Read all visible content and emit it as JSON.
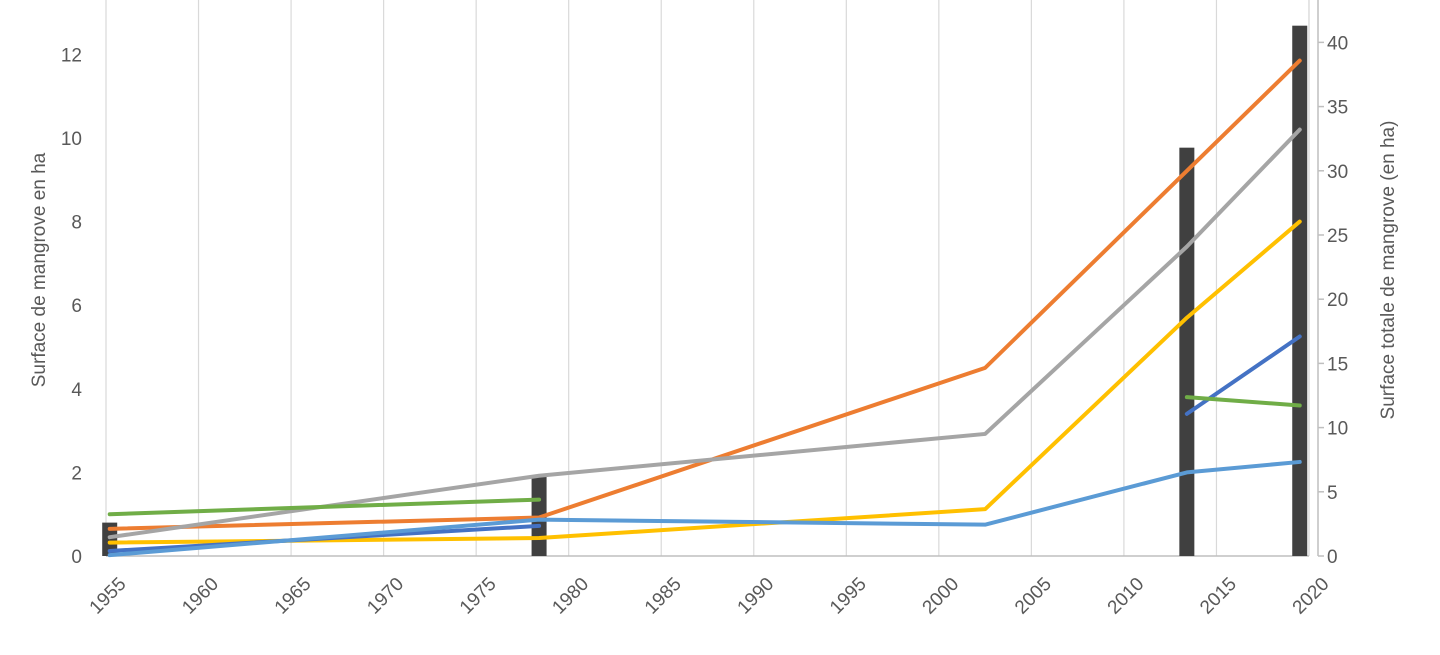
{
  "chart_data": {
    "type": "line",
    "title": "",
    "xlabel": "",
    "ylabel": "Surface de mangrove en ha",
    "y2label": "Surface totale de mangrove (en ha)",
    "xlim": [
      1955,
      2020
    ],
    "ylim": [
      0,
      13.3
    ],
    "y2lim": [
      0,
      43.3
    ],
    "grid": "vertical",
    "legend": "none",
    "x_ticks": [
      "1955",
      "1960",
      "1965",
      "1970",
      "1975",
      "1980",
      "1985",
      "1990",
      "1995",
      "2000",
      "2005",
      "2010",
      "2015",
      "2020"
    ],
    "y_ticks": [
      "0",
      "2",
      "4",
      "6",
      "8",
      "10",
      "12"
    ],
    "y2_ticks": [
      "0",
      "5",
      "10",
      "15",
      "20",
      "25",
      "30",
      "35",
      "40"
    ],
    "bars": {
      "axis": "y2",
      "color": "#404040",
      "x": [
        1955.2,
        1978.4,
        2013.4,
        2019.5
      ],
      "values": [
        2.6,
        6.3,
        31.8,
        41.3
      ]
    },
    "series": [
      {
        "color": "#ED7D31",
        "x": [
          1955.2,
          1978.4,
          2002.5,
          2019.5
        ],
        "values": [
          0.65,
          0.92,
          4.5,
          11.85
        ]
      },
      {
        "color": "#A5A5A5",
        "x": [
          1955.2,
          1978.4,
          2002.5,
          2013.4,
          2019.5
        ],
        "values": [
          0.45,
          1.92,
          2.92,
          7.4,
          10.2
        ]
      },
      {
        "color": "#FFC000",
        "x": [
          1955.2,
          1978.4,
          2002.5,
          2013.4,
          2019.5
        ],
        "values": [
          0.32,
          0.43,
          1.12,
          5.7,
          8.0
        ]
      },
      {
        "color": "#4472C4",
        "x": [
          1955.2,
          1978.4
        ],
        "values": [
          0.12,
          0.72
        ]
      },
      {
        "color": "#4472C4",
        "x": [
          2013.4,
          2019.5
        ],
        "values": [
          3.4,
          5.25
        ]
      },
      {
        "color": "#5B9BD5",
        "x": [
          1955.2,
          1978.4,
          2002.5,
          2013.4,
          2019.5
        ],
        "values": [
          0.02,
          0.87,
          0.75,
          2.0,
          2.25
        ]
      },
      {
        "color": "#70AD47",
        "x": [
          1955.2,
          1978.4
        ],
        "values": [
          1.0,
          1.35
        ]
      },
      {
        "color": "#70AD47",
        "x": [
          2013.4,
          2019.5
        ],
        "values": [
          3.8,
          3.6
        ]
      }
    ]
  }
}
